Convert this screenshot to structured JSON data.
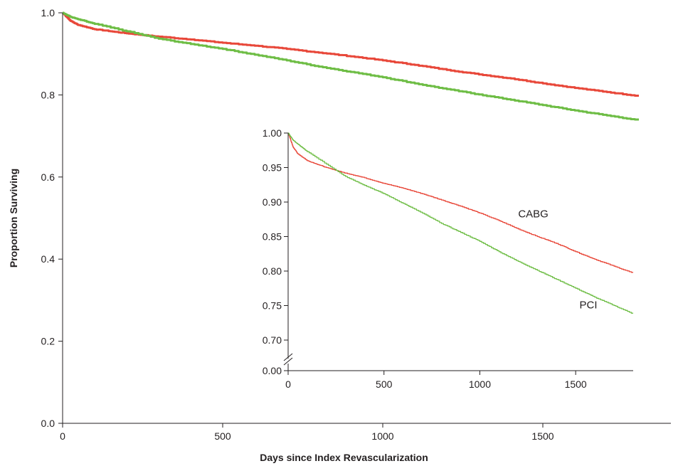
{
  "chart_data": [
    {
      "type": "line",
      "xlabel": "Days since Index Revascularization",
      "ylabel": "Proportion Surviving",
      "xlim": [
        0,
        1900
      ],
      "ylim": [
        0,
        1.0
      ],
      "xticks": [
        0,
        500,
        1000,
        1500
      ],
      "xtick_labels": [
        "0",
        "500",
        "1000",
        "1500"
      ],
      "yticks": [
        0.0,
        0.2,
        0.4,
        0.6,
        0.8,
        1.0
      ],
      "ytick_labels": [
        "0.0",
        "0.2",
        "0.4",
        "0.6",
        "0.8",
        "1.0"
      ],
      "grid": false,
      "series": [
        {
          "color": "#e8483a",
          "x": [
            0,
            25,
            50,
            100,
            150,
            200,
            250,
            300,
            400,
            500,
            600,
            700,
            800,
            900,
            1000,
            1100,
            1200,
            1300,
            1400,
            1500,
            1600,
            1700,
            1800
          ],
          "y": [
            1.0,
            0.98,
            0.97,
            0.96,
            0.955,
            0.95,
            0.946,
            0.942,
            0.935,
            0.927,
            0.92,
            0.912,
            0.903,
            0.894,
            0.884,
            0.873,
            0.861,
            0.85,
            0.84,
            0.828,
            0.817,
            0.807,
            0.797
          ]
        },
        {
          "color": "#6ebd45",
          "x": [
            0,
            25,
            50,
            100,
            200,
            300,
            400,
            500,
            600,
            700,
            800,
            900,
            1000,
            1100,
            1200,
            1300,
            1400,
            1500,
            1600,
            1700,
            1800
          ],
          "y": [
            1.0,
            0.99,
            0.984,
            0.973,
            0.955,
            0.937,
            0.924,
            0.912,
            0.898,
            0.884,
            0.869,
            0.856,
            0.843,
            0.828,
            0.814,
            0.801,
            0.788,
            0.775,
            0.762,
            0.75,
            0.738
          ]
        }
      ]
    },
    {
      "type": "line",
      "inset": true,
      "xlim": [
        0,
        1800
      ],
      "ylim": [
        0.7,
        1.0
      ],
      "axis_break": true,
      "xticks": [
        0,
        500,
        1000,
        1500
      ],
      "xtick_labels": [
        "0",
        "500",
        "1000",
        "1500"
      ],
      "yticks": [
        1.0,
        0.95,
        0.9,
        0.85,
        0.8,
        0.75,
        0.7
      ],
      "ytick_labels": [
        "1.00",
        "0.95",
        "0.90",
        "0.85",
        "0.80",
        "0.75",
        "0.70"
      ],
      "break_tick_label": "0.00",
      "grid": false,
      "series": [
        {
          "name": "CABG",
          "color": "#e8483a",
          "x": [
            0,
            25,
            50,
            100,
            150,
            200,
            250,
            300,
            400,
            500,
            600,
            700,
            800,
            900,
            1000,
            1100,
            1200,
            1300,
            1400,
            1500,
            1600,
            1700,
            1800
          ],
          "y": [
            1.0,
            0.98,
            0.97,
            0.96,
            0.955,
            0.95,
            0.946,
            0.942,
            0.935,
            0.927,
            0.92,
            0.912,
            0.903,
            0.894,
            0.884,
            0.873,
            0.861,
            0.85,
            0.84,
            0.828,
            0.817,
            0.807,
            0.797
          ]
        },
        {
          "name": "PCI",
          "color": "#6ebd45",
          "x": [
            0,
            25,
            50,
            100,
            200,
            300,
            400,
            500,
            600,
            700,
            800,
            900,
            1000,
            1100,
            1200,
            1300,
            1400,
            1500,
            1600,
            1700,
            1800
          ],
          "y": [
            1.0,
            0.99,
            0.984,
            0.973,
            0.955,
            0.937,
            0.924,
            0.912,
            0.898,
            0.884,
            0.869,
            0.856,
            0.843,
            0.828,
            0.814,
            0.801,
            0.788,
            0.775,
            0.762,
            0.75,
            0.738
          ]
        }
      ],
      "annotations": [
        {
          "text": "CABG",
          "x": 1200,
          "y": 0.878
        },
        {
          "text": "PCI",
          "x": 1520,
          "y": 0.746
        }
      ]
    }
  ]
}
